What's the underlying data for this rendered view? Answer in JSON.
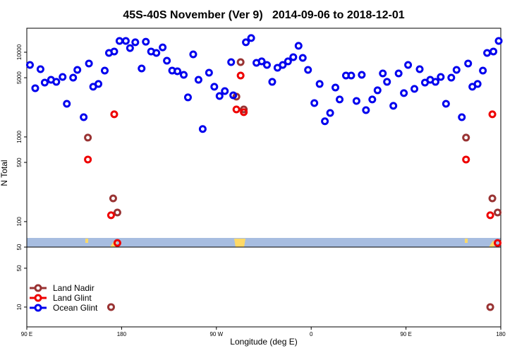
{
  "chart_data": {
    "type": "scatter",
    "title": "45S-40S November (Ver 9)   2014-09-06 to 2018-12-01",
    "xlabel": "Longitude (deg E)",
    "ylabel": "N Total",
    "xlim": [
      90,
      540
    ],
    "xticks": [
      {
        "value": 90,
        "label": "90 E"
      },
      180,
      {
        "value": 270,
        "label": "90 W"
      },
      {
        "value": 360,
        "label": "0"
      },
      {
        "value": 450,
        "label": "90 E"
      },
      {
        "value": 540,
        "label": "180"
      }
    ],
    "log_scale": true,
    "legend": "lower left",
    "panels": [
      {
        "ylim": [
          50,
          19200
        ],
        "yticks": [
          50,
          100,
          500,
          1000,
          5000,
          10000
        ]
      },
      {
        "ylim": [
          4.4,
          120
        ],
        "yticks": [
          10,
          50
        ]
      }
    ],
    "series": [
      {
        "name": "Land Nadir",
        "color": "#993333",
        "x": [
          148,
          170,
          172,
          176,
          289,
          293,
          296,
          507,
          530,
          532,
          537
        ],
        "values": [
          981,
          10,
          188,
          128,
          2990,
          7640,
          2110,
          981,
          10,
          188,
          128
        ]
      },
      {
        "name": "Land Glint",
        "color": "#ee0000",
        "x": [
          148,
          170,
          173,
          176,
          289,
          293,
          296,
          507,
          530,
          532,
          537
        ],
        "values": [
          541,
          119,
          1850,
          56,
          2110,
          5310,
          1960,
          541,
          119,
          1850,
          56
        ]
      },
      {
        "name": "Ocean Glint",
        "color": "#0000ee",
        "x": [
          93,
          98,
          103,
          107,
          113,
          118,
          124,
          128,
          134,
          138,
          144,
          149,
          153,
          158,
          164,
          168,
          173,
          178,
          184,
          188,
          193,
          199,
          203,
          208,
          213,
          219,
          223,
          228,
          233,
          239,
          243,
          248,
          253,
          257,
          263,
          268,
          273,
          278,
          284,
          286,
          298,
          303,
          308,
          313,
          318,
          323,
          328,
          333,
          338,
          343,
          348,
          352,
          357,
          363,
          368,
          373,
          378,
          383,
          387,
          393,
          398,
          403,
          408,
          412,
          418,
          423,
          428,
          432,
          438,
          443,
          448,
          452,
          458,
          463,
          468,
          473,
          478,
          483,
          488,
          493,
          498,
          503,
          509,
          513,
          518,
          523,
          527,
          533,
          538
        ],
        "values": [
          7080,
          3760,
          6310,
          4380,
          4730,
          4470,
          5110,
          2460,
          5010,
          6190,
          1710,
          7360,
          3910,
          4220,
          6070,
          9810,
          10200,
          13600,
          13600,
          11200,
          13100,
          6430,
          13300,
          10200,
          9810,
          11400,
          7940,
          6070,
          5960,
          5410,
          2930,
          9440,
          4730,
          1240,
          5730,
          3910,
          3040,
          3480,
          7640,
          3100,
          13100,
          14700,
          7500,
          7800,
          7080,
          4470,
          6560,
          7080,
          7800,
          8750,
          11900,
          8580,
          6190,
          2510,
          4220,
          1530,
          1920,
          3830,
          2770,
          5310,
          5310,
          2660,
          5410,
          2070,
          2770,
          3550,
          5620,
          4470,
          2330,
          5620,
          3290,
          7080,
          3690,
          6310,
          4380,
          4730,
          4470,
          5110,
          2460,
          5010,
          6190,
          1710,
          7360,
          3910,
          4220,
          6070,
          9810,
          10200,
          13600
        ]
      }
    ]
  }
}
